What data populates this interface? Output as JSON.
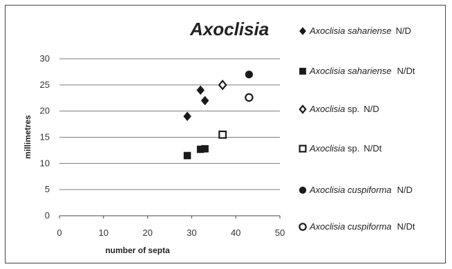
{
  "chart_data": {
    "type": "scatter",
    "title": "Axoclisia",
    "xlabel": "number of septa",
    "ylabel": "millimetres",
    "xlim": [
      0,
      50
    ],
    "ylim": [
      0,
      30
    ],
    "xticks": [
      "0",
      "10",
      "20",
      "30",
      "40",
      "50"
    ],
    "yticks": [
      "0",
      "5",
      "10",
      "15",
      "20",
      "25",
      "30"
    ],
    "grid": "horizontal",
    "legend_position": "right",
    "series": [
      {
        "genus": "Axoclisia",
        "species": "sahariense",
        "ratio": "N/D",
        "marker": "diamond-filled",
        "points": [
          {
            "x": 29,
            "y": 19
          },
          {
            "x": 32,
            "y": 24
          },
          {
            "x": 33,
            "y": 22
          }
        ]
      },
      {
        "genus": "Axoclisia",
        "species": "sahariense",
        "ratio": "N/Dt",
        "marker": "square-filled",
        "points": [
          {
            "x": 29,
            "y": 11.5
          },
          {
            "x": 32,
            "y": 12.7
          },
          {
            "x": 33,
            "y": 12.8
          }
        ]
      },
      {
        "genus": "Axoclisia",
        "species": "sp.",
        "ratio": "N/D",
        "marker": "diamond-open",
        "points": [
          {
            "x": 37,
            "y": 25
          }
        ]
      },
      {
        "genus": "Axoclisia",
        "species": "sp.",
        "ratio": "N/Dt",
        "marker": "square-open",
        "points": [
          {
            "x": 37,
            "y": 15.5
          }
        ]
      },
      {
        "genus": "Axoclisia",
        "species": "cuspiforma",
        "ratio": "N/D",
        "marker": "circle-filled",
        "points": [
          {
            "x": 43,
            "y": 27
          }
        ]
      },
      {
        "genus": "Axoclisia",
        "species": "cuspiforma",
        "ratio": "N/Dt",
        "marker": "circle-open",
        "points": [
          {
            "x": 43,
            "y": 22.6
          }
        ]
      }
    ]
  },
  "colors": {
    "marker": "#1a1a1a",
    "grid": "#7a7a7a",
    "axis": "#444444"
  }
}
